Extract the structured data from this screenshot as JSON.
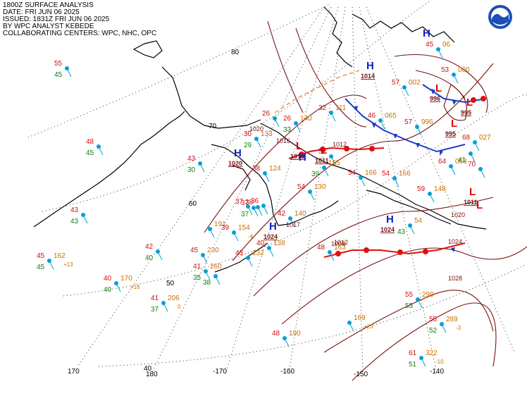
{
  "header": {
    "lines": [
      "1800Z SURFACE ANALYSIS",
      "DATE: FRI JUN 06 2025",
      "ISSUED: 1831Z FRI JUN 06 2025",
      "BY WPC ANALYST KEBEDE",
      "COLLABORATING CENTERS: WPC, NHC, OPC"
    ]
  },
  "colors": {
    "isobar": "#7a1010",
    "graticule": "#333333",
    "high": "#1020c8",
    "low": "#e00000",
    "cold_front": "#1a3cc8",
    "warm_front": "#e01010",
    "temp": "#d01010",
    "dewpoint": "#108010",
    "pressure": "#c87000",
    "station": "#00a0d8"
  },
  "graticule_labels": [
    "80",
    "70",
    "60",
    "50",
    "40",
    "180",
    "170",
    "-170",
    "-160",
    "-150",
    "-140"
  ],
  "pressure_centers": [
    {
      "type": "H",
      "value": "1020"
    },
    {
      "type": "H",
      "value": "1024"
    },
    {
      "type": "H",
      "value": "1024"
    },
    {
      "type": "H",
      "value": "1014"
    },
    {
      "type": "H",
      "value": ""
    },
    {
      "type": "H",
      "value": ""
    },
    {
      "type": "L",
      "value": "1011"
    },
    {
      "type": "L",
      "value": "1010"
    },
    {
      "type": "L",
      "value": "1011"
    },
    {
      "type": "L",
      "value": "996"
    },
    {
      "type": "L",
      "value": "995"
    },
    {
      "type": "L",
      "value": "995"
    },
    {
      "type": "L",
      "value": ""
    }
  ],
  "isobar_labels": [
    "1020",
    "1016",
    "1012",
    "1008",
    "1024",
    "1028",
    "1012",
    "1020",
    "1017"
  ],
  "stations": [
    {
      "t": "55",
      "d": "45",
      "p": ""
    },
    {
      "t": "48",
      "d": "45",
      "p": ""
    },
    {
      "t": "43",
      "d": "43",
      "p": ""
    },
    {
      "t": "45",
      "d": "45",
      "p": "162",
      "tend": "+13"
    },
    {
      "t": "42",
      "d": "40",
      "p": ""
    },
    {
      "t": "40",
      "d": "40",
      "p": "170",
      "tend": "+16"
    },
    {
      "t": "41",
      "d": "37",
      "p": "206",
      "tend": "0"
    },
    {
      "t": "45",
      "d": "",
      "p": "230"
    },
    {
      "t": "41",
      "d": "35",
      "p": "260"
    },
    {
      "t": "",
      "d": "38",
      "p": ""
    },
    {
      "t": "",
      "d": "",
      "p": "191"
    },
    {
      "t": "39",
      "d": "",
      "p": "154",
      "tend": "-4"
    },
    {
      "t": "43",
      "d": "",
      "p": "132"
    },
    {
      "t": "40",
      "d": "",
      "p": "138"
    },
    {
      "t": "42",
      "d": "",
      "p": "140"
    },
    {
      "t": "43",
      "d": "30",
      "p": ""
    },
    {
      "t": "37",
      "d": "37",
      "p": ""
    },
    {
      "t": "38",
      "d": "",
      "p": "124"
    },
    {
      "t": "30",
      "d": "29",
      "p": "133"
    },
    {
      "t": "26",
      "d": "",
      "p": ""
    },
    {
      "t": "26",
      "d": "33",
      "p": "140"
    },
    {
      "t": "32",
      "d": "",
      "p": "111"
    },
    {
      "t": "52",
      "d": "",
      "p": ""
    },
    {
      "t": "54",
      "d": "",
      "p": "166"
    },
    {
      "t": "54",
      "d": "",
      "p": "130"
    },
    {
      "t": "46",
      "d": "",
      "p": "065"
    },
    {
      "t": "57",
      "d": "",
      "p": "996"
    },
    {
      "t": "57",
      "d": "",
      "p": "002"
    },
    {
      "t": "53",
      "d": "",
      "p": "000"
    },
    {
      "t": "45",
      "d": "",
      "p": "06"
    },
    {
      "t": "68",
      "d": "",
      "p": "027"
    },
    {
      "t": "64",
      "d": "",
      "p": "068"
    },
    {
      "t": "70",
      "d": "",
      "p": ""
    },
    {
      "t": "59",
      "d": "",
      "p": "148"
    },
    {
      "t": "54",
      "d": "",
      "p": "166"
    },
    {
      "t": "48",
      "d": "",
      "p": "163"
    },
    {
      "t": "",
      "d": "",
      "p": "169",
      "tend": "+23"
    },
    {
      "t": "48",
      "d": "",
      "p": "190"
    },
    {
      "t": "55",
      "d": "53",
      "p": "299"
    },
    {
      "t": "55",
      "d": "52",
      "p": "289",
      "tend": "-3"
    },
    {
      "t": "61",
      "d": "51",
      "p": "322",
      "tend": "-10"
    },
    {
      "t": "37",
      "d": "",
      "p": ""
    },
    {
      "t": "38",
      "d": "",
      "p": ""
    },
    {
      "t": "36",
      "d": "",
      "p": ""
    },
    {
      "t": "",
      "d": "39",
      "p": "155"
    },
    {
      "t": "",
      "d": "41",
      "p": ""
    },
    {
      "t": "",
      "d": "43",
      "p": "54"
    }
  ]
}
